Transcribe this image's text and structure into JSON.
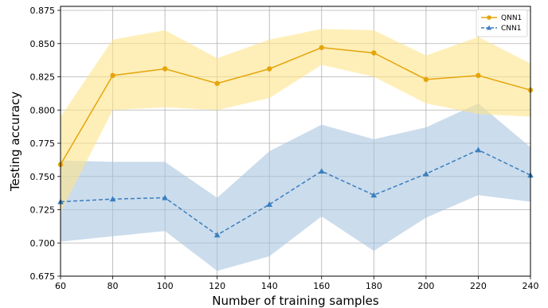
{
  "chart_data": {
    "type": "line",
    "xlabel": "Number of training samples",
    "ylabel": "Testing accuracy",
    "x": [
      60,
      80,
      100,
      120,
      140,
      160,
      180,
      200,
      220,
      240
    ],
    "xlim": [
      60,
      240
    ],
    "ylim": [
      0.675,
      0.878
    ],
    "x_ticks": [
      60,
      80,
      100,
      120,
      140,
      160,
      180,
      200,
      220,
      240
    ],
    "y_ticks": [
      0.675,
      0.7,
      0.725,
      0.75,
      0.775,
      0.8,
      0.825,
      0.85,
      0.875
    ],
    "y_tick_labels": [
      "0.675",
      "0.700",
      "0.725",
      "0.750",
      "0.775",
      "0.800",
      "0.825",
      "0.850",
      "0.875"
    ],
    "grid": true,
    "legend_position": "top-right",
    "series": [
      {
        "name": "QNN1",
        "color": "#e5a50a",
        "band_color": "#fde58a",
        "marker": "circle",
        "line_style": "solid",
        "values": [
          0.759,
          0.826,
          0.831,
          0.82,
          0.831,
          0.847,
          0.843,
          0.823,
          0.826,
          0.815
        ],
        "upper": [
          0.795,
          0.853,
          0.86,
          0.839,
          0.853,
          0.861,
          0.86,
          0.841,
          0.855,
          0.835
        ],
        "lower": [
          0.723,
          0.8,
          0.802,
          0.8,
          0.809,
          0.834,
          0.825,
          0.805,
          0.797,
          0.795
        ]
      },
      {
        "name": "CNN1",
        "color": "#3a7ebf",
        "band_color": "#a9c5e0",
        "marker": "triangle",
        "line_style": "dashed",
        "values": [
          0.731,
          0.733,
          0.734,
          0.706,
          0.729,
          0.754,
          0.736,
          0.752,
          0.77,
          0.751
        ],
        "upper": [
          0.762,
          0.761,
          0.761,
          0.734,
          0.769,
          0.789,
          0.778,
          0.787,
          0.805,
          0.772
        ],
        "lower": [
          0.701,
          0.705,
          0.709,
          0.679,
          0.69,
          0.72,
          0.694,
          0.719,
          0.736,
          0.731
        ]
      }
    ]
  }
}
